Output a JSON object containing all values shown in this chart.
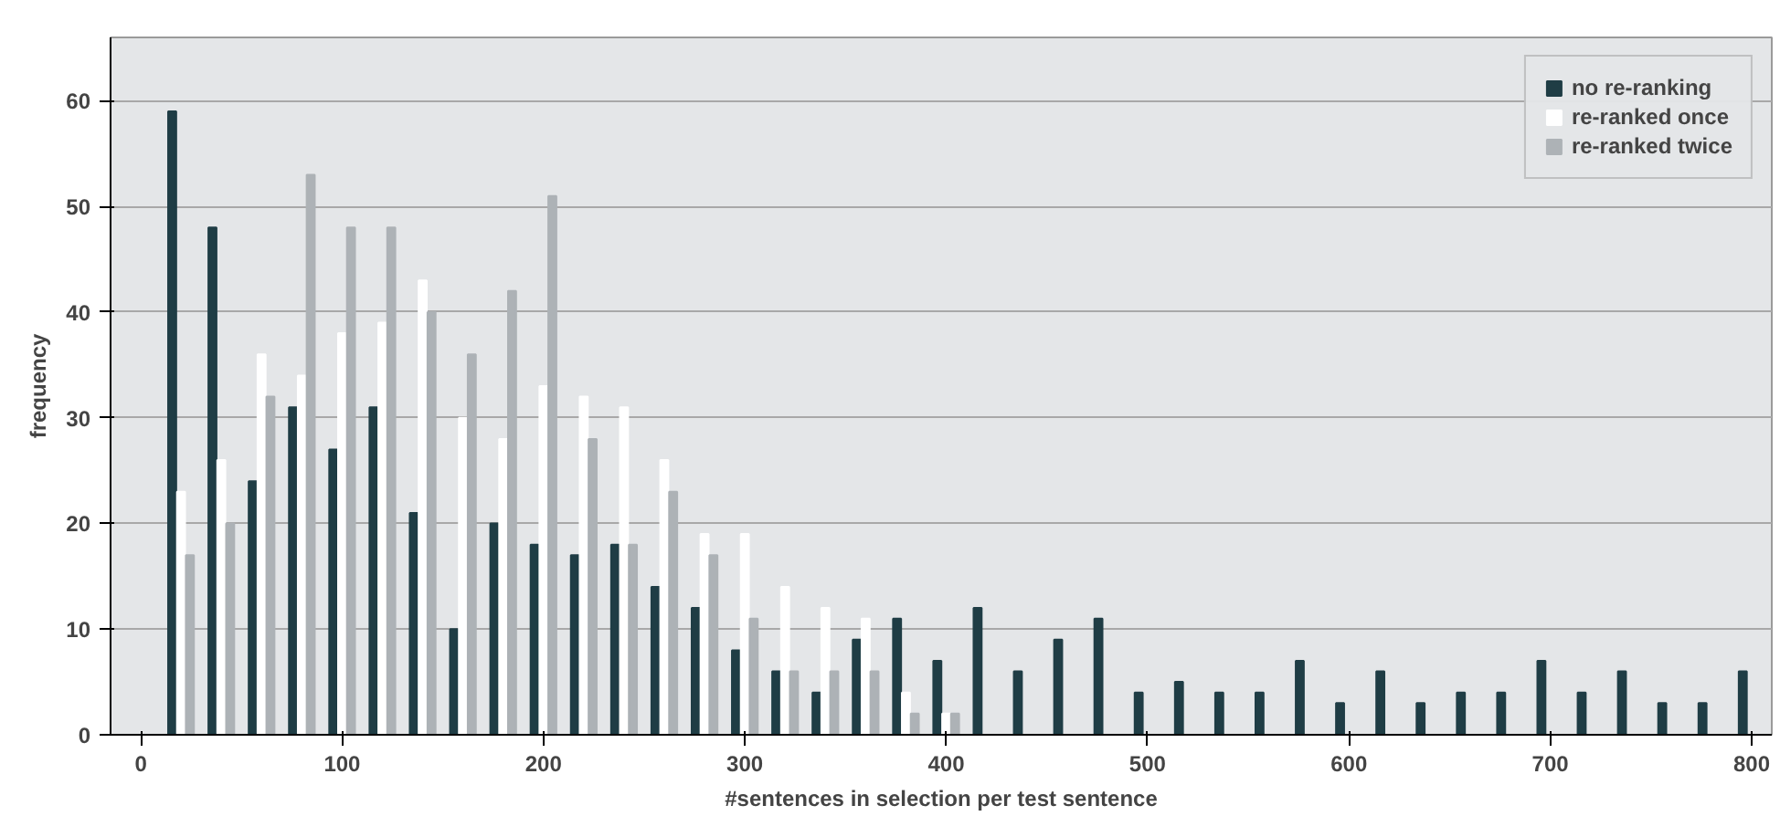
{
  "chart_data": {
    "type": "bar",
    "xlabel": "#sentences in selection per test sentence",
    "ylabel": "frequency",
    "x": [
      20,
      40,
      60,
      80,
      100,
      120,
      140,
      160,
      180,
      200,
      220,
      240,
      260,
      280,
      300,
      320,
      340,
      360,
      380,
      400,
      420,
      440,
      460,
      480,
      500,
      520,
      540,
      560,
      580,
      600,
      620,
      640,
      660,
      680,
      700,
      720,
      740,
      760,
      780,
      800
    ],
    "series": [
      {
        "name": "no re-ranking",
        "color": "#1f3d45",
        "values": [
          59,
          48,
          24,
          31,
          27,
          31,
          21,
          10,
          20,
          18,
          17,
          18,
          14,
          12,
          8,
          6,
          4,
          9,
          11,
          7,
          12,
          6,
          9,
          11,
          4,
          5,
          4,
          4,
          7,
          3,
          6,
          3,
          4,
          4,
          7,
          4,
          6,
          3,
          3,
          6
        ]
      },
      {
        "name": "re-ranked once",
        "color": "#ffffff",
        "values": [
          23,
          26,
          36,
          34,
          38,
          39,
          43,
          30,
          28,
          33,
          32,
          31,
          26,
          19,
          19,
          14,
          12,
          11,
          4,
          2,
          null,
          null,
          null,
          null,
          null,
          null,
          null,
          null,
          null,
          null,
          null,
          null,
          null,
          null,
          null,
          null,
          null,
          null,
          null,
          null
        ]
      },
      {
        "name": "re-ranked twice",
        "color": "#adb2b6",
        "values": [
          17,
          20,
          32,
          53,
          48,
          48,
          40,
          36,
          42,
          51,
          28,
          18,
          23,
          17,
          11,
          6,
          6,
          6,
          2,
          2,
          null,
          null,
          null,
          null,
          null,
          null,
          null,
          null,
          null,
          null,
          null,
          null,
          null,
          null,
          null,
          null,
          null,
          null,
          null,
          null
        ]
      }
    ],
    "xlim": [
      -15,
      810
    ],
    "xticks": [
      0,
      100,
      200,
      300,
      400,
      500,
      600,
      700,
      800
    ],
    "ylim": [
      0,
      66
    ],
    "yticks": [
      0,
      10,
      20,
      30,
      40,
      50,
      60
    ],
    "grid": "y",
    "legend": "top right"
  }
}
